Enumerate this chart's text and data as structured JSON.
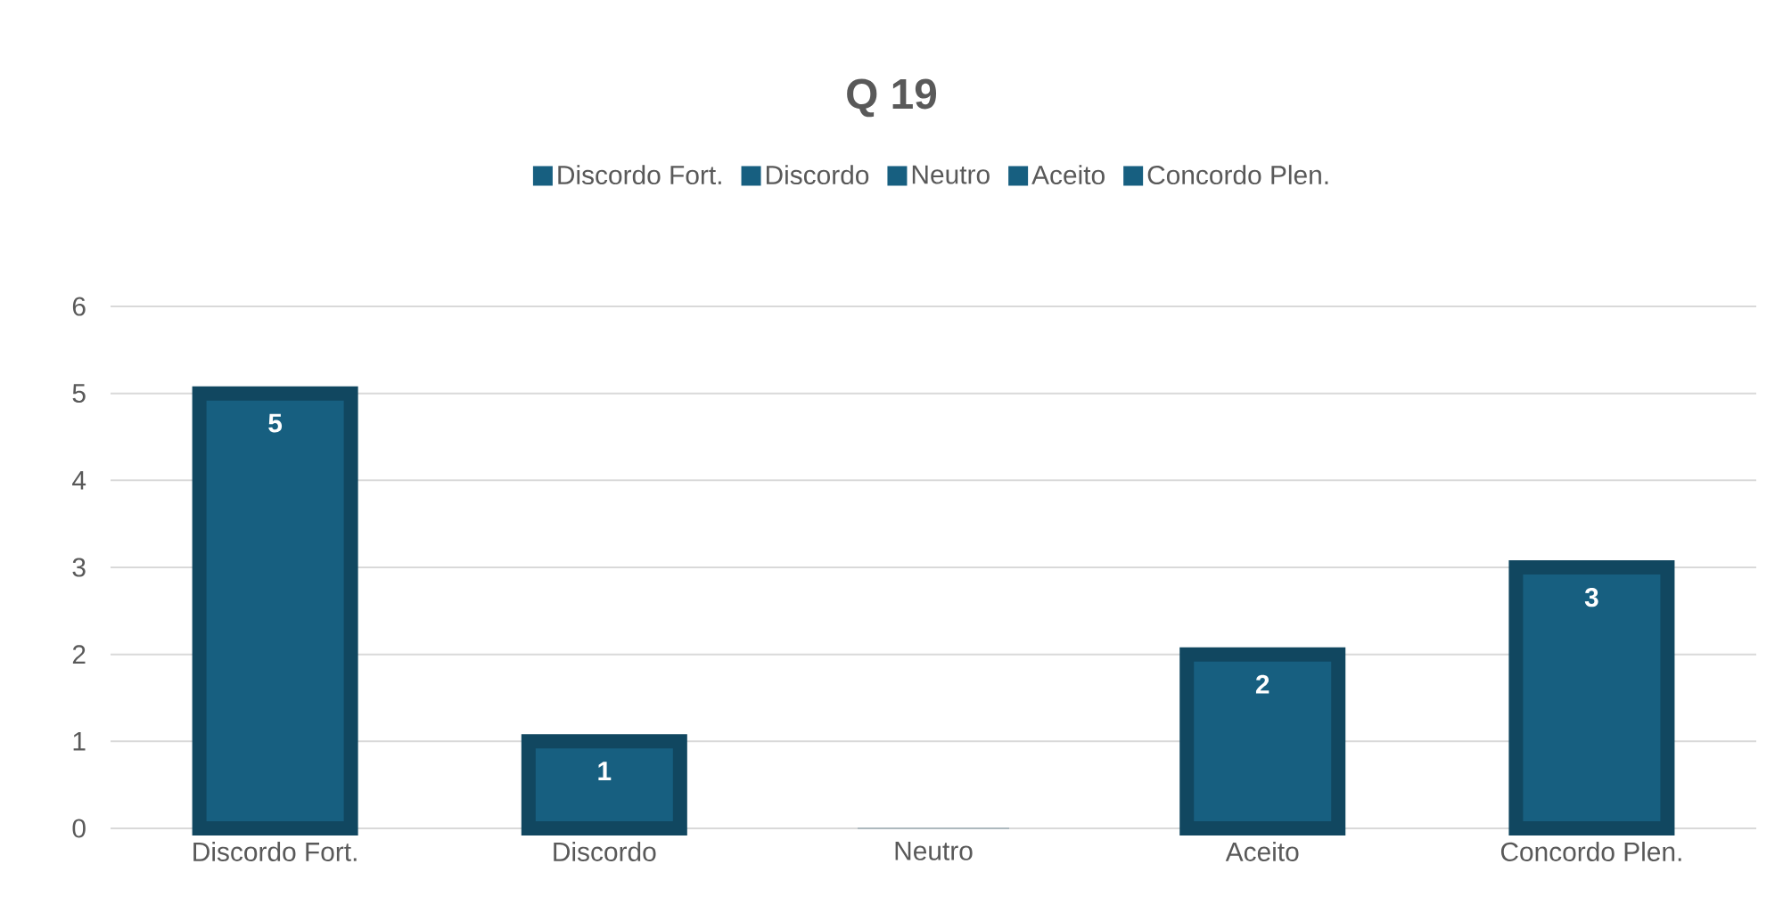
{
  "chart_data": {
    "type": "bar",
    "title": "Q 19",
    "categories": [
      "Discordo Fort.",
      "Discordo",
      "Neutro",
      "Aceito",
      "Concordo Plen."
    ],
    "series": [
      {
        "name": "Discordo Fort.",
        "color": "#175f80",
        "values": [
          5,
          null,
          null,
          null,
          null
        ],
        "value_labels": [
          "5",
          null,
          null,
          null,
          null
        ]
      },
      {
        "name": "Discordo",
        "color": "#175f80",
        "values": [
          null,
          1,
          null,
          null,
          null
        ],
        "value_labels": [
          null,
          "1",
          null,
          null,
          null
        ]
      },
      {
        "name": "Neutro",
        "color": "#175f80",
        "values": [
          null,
          null,
          0,
          null,
          null
        ],
        "value_labels": [
          null,
          null,
          null,
          null,
          null
        ]
      },
      {
        "name": "Aceito",
        "color": "#175f80",
        "values": [
          null,
          null,
          null,
          2,
          null
        ],
        "value_labels": [
          null,
          null,
          null,
          "2",
          null
        ]
      },
      {
        "name": "Concordo Plen.",
        "color": "#175f80",
        "values": [
          null,
          null,
          null,
          null,
          3
        ],
        "value_labels": [
          null,
          null,
          null,
          null,
          "3"
        ]
      }
    ],
    "ylim": [
      0,
      6
    ],
    "yticks": [
      0,
      1,
      2,
      3,
      4,
      5,
      6
    ],
    "grid": "y",
    "legend": "top"
  }
}
